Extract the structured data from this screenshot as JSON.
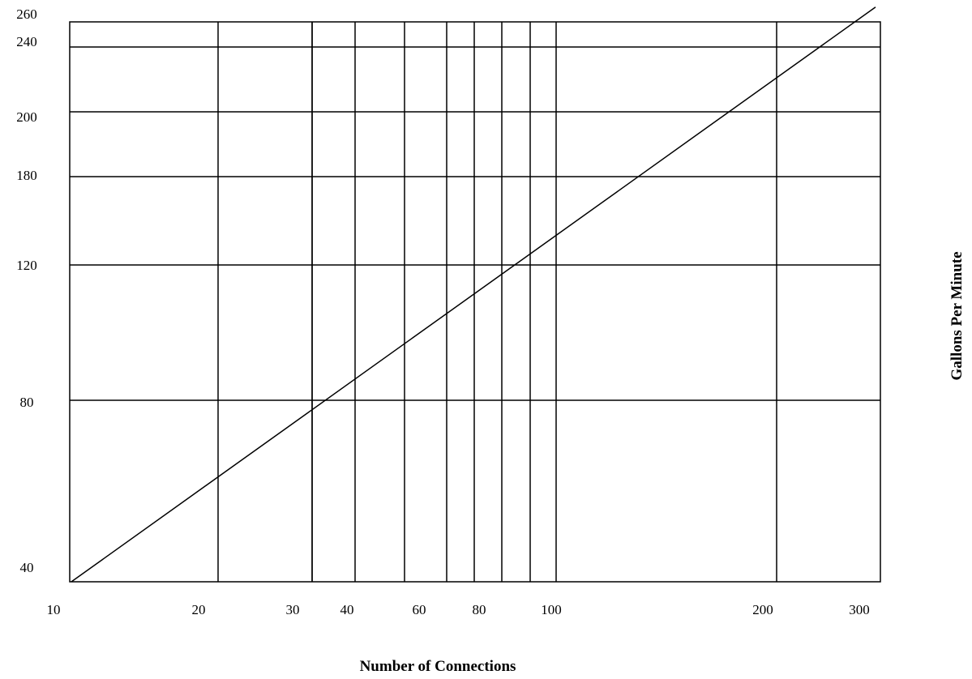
{
  "chart_data": {
    "type": "line",
    "title": "",
    "xlabel": "Number of Connections",
    "ylabel": "Gallons Per Minute",
    "legend": "none",
    "grid": true,
    "line_color": "#000000",
    "grid_color": "#000000",
    "x_tick_labels": [
      "10",
      "20",
      "30",
      "40",
      "60",
      "80",
      "100",
      "200",
      "300"
    ],
    "x_grid_lines": [
      "10",
      "20",
      "30",
      "35",
      "40",
      "50",
      "60",
      "70",
      "80",
      "90",
      "100",
      "200",
      "300"
    ],
    "y_tick_labels": [
      "40",
      "80",
      "120",
      "180",
      "200",
      "240",
      "260"
    ],
    "x": [
      10,
      300
    ],
    "series": [
      {
        "values": [
          40,
          255
        ]
      }
    ]
  }
}
